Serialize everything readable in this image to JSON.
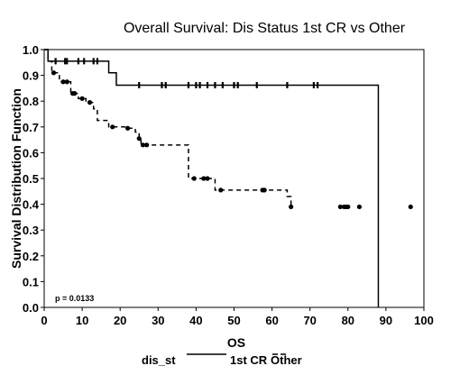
{
  "chart_data": {
    "type": "line",
    "title": "Overall Survival: Dis Status 1st CR vs Other",
    "xlabel": "OS",
    "ylabel": "Survival Distribution Function",
    "xlim": [
      0,
      100
    ],
    "ylim": [
      0,
      1.0
    ],
    "x_ticks": [
      "0",
      "10",
      "20",
      "30",
      "40",
      "50",
      "60",
      "70",
      "80",
      "90",
      "100"
    ],
    "y_ticks": [
      "0.0",
      "0.1",
      "0.2",
      "0.3",
      "0.4",
      "0.5",
      "0.6",
      "0.7",
      "0.8",
      "0.9",
      "1.0"
    ],
    "annotation": "p = 0.0133",
    "legend": {
      "title": "dis_st",
      "position": "bottom"
    },
    "series": [
      {
        "name": "1st CR",
        "style": "solid",
        "steps": [
          [
            0,
            1.0
          ],
          [
            1,
            0.955
          ],
          [
            17,
            0.91
          ],
          [
            19,
            0.862
          ],
          [
            88,
            0.0
          ]
        ],
        "censor_x": [
          3,
          5.5,
          6,
          9,
          10.5,
          13,
          14,
          25,
          31,
          32,
          38,
          40,
          41,
          43,
          45,
          47,
          50,
          51,
          56,
          64,
          71,
          72
        ]
      },
      {
        "name": "Other",
        "style": "dashed",
        "steps": [
          [
            0,
            1.0
          ],
          [
            1,
            0.955
          ],
          [
            2,
            0.91
          ],
          [
            4,
            0.875
          ],
          [
            7,
            0.83
          ],
          [
            9,
            0.81
          ],
          [
            11,
            0.795
          ],
          [
            13,
            0.77
          ],
          [
            14,
            0.725
          ],
          [
            17,
            0.7
          ],
          [
            22,
            0.695
          ],
          [
            24,
            0.68
          ],
          [
            25,
            0.655
          ],
          [
            25.5,
            0.63
          ],
          [
            38,
            0.5
          ],
          [
            45,
            0.455
          ],
          [
            57,
            0.455
          ],
          [
            64,
            0.43
          ],
          [
            65,
            0.39
          ]
        ],
        "censor_x": [
          2.5,
          5,
          6,
          7.5,
          8,
          10,
          12,
          18,
          22,
          25,
          26,
          27,
          39.5,
          42,
          43,
          46.5,
          57.5,
          58,
          65,
          78,
          79,
          79.5,
          80,
          83,
          96.5
        ]
      }
    ]
  }
}
